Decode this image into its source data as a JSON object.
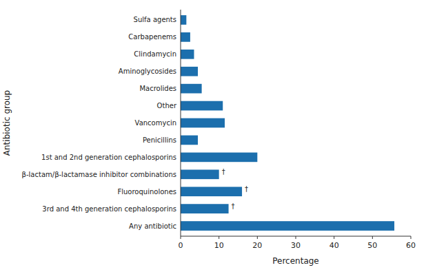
{
  "chart_data": {
    "type": "bar",
    "orientation": "horizontal",
    "categories": [
      "Any antibiotic",
      "3rd and 4th generation cephalosporins",
      "Fluoroquinolones",
      "β-lactam/β-lactamase inhibitor combinations",
      "1st and 2nd generation cephalosporins",
      "Penicillins",
      "Vancomycin",
      "Other",
      "Macrolides",
      "Aminoglycosides",
      "Clindamycin",
      "Carbapenems",
      "Sulfa agents"
    ],
    "values": [
      55.7,
      12.5,
      16.0,
      10.0,
      20.0,
      4.5,
      11.5,
      11.0,
      5.5,
      4.5,
      3.5,
      2.5,
      1.5
    ],
    "color": "#1c6fad",
    "x_label": "Percentage",
    "y_label": "Antibiotic group",
    "xlim": [
      0,
      60
    ],
    "xticks": [
      0,
      10,
      20,
      30,
      40,
      50,
      60
    ],
    "grid": false,
    "annotations": [
      {
        "text": "†",
        "category": "3rd and 4th generation cephalosporins"
      },
      {
        "text": "†",
        "category": "Fluoroquinolones"
      },
      {
        "text": "†",
        "category": "β-lactam/β-lactamase inhibitor combinations"
      }
    ]
  }
}
